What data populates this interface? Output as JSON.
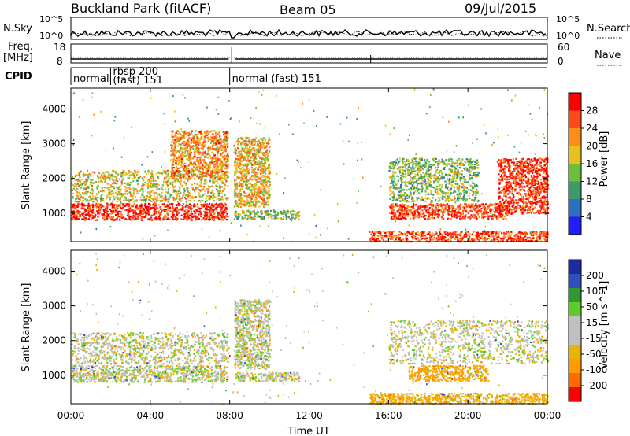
{
  "header": {
    "station": "Buckland Park (fitACF)",
    "beam": "Beam 05",
    "date": "09/Jul/2015"
  },
  "strip": {
    "nsky_label": "N.Sky",
    "nsky_ticks": [
      "10^5",
      "10^0"
    ],
    "nsearch_label": "N.Search",
    "nsearch_ticks": [
      "10^5",
      "10^0"
    ],
    "freq_label_1": "Freq.",
    "freq_label_2": "[MHz]",
    "freq_ticks": [
      "18",
      "8"
    ],
    "nave_label": "Nave",
    "nave_ticks": [
      "60",
      "0"
    ],
    "cpid_label": "CPID",
    "cpid_segments": [
      {
        "label": "normal",
        "start_hr": 0.0,
        "end_hr": 2.0
      },
      {
        "label": "rbsp 200",
        "label2": "(fast) 151",
        "start_hr": 2.0,
        "end_hr": 8.0
      },
      {
        "label": "normal (fast) 151",
        "start_hr": 8.0,
        "end_hr": 24.0
      }
    ]
  },
  "time_axis": {
    "label": "Time UT",
    "ticks": [
      "00:00",
      "04:00",
      "08:00",
      "12:00",
      "16:00",
      "20:00",
      "00:00"
    ],
    "range_hr": [
      0,
      24
    ]
  },
  "power_panel": {
    "ylabel": "Slant Range [km]",
    "yticks": [
      "1000",
      "2000",
      "3000",
      "4000"
    ],
    "colorbar_label": "Power [dB]",
    "colorbar_ticks": [
      "4",
      "8",
      "12",
      "16",
      "20",
      "24",
      "28"
    ]
  },
  "velocity_panel": {
    "ylabel": "Slant Range [km]",
    "yticks": [
      "1000",
      "2000",
      "3000",
      "4000"
    ],
    "colorbar_label": "Velocity [m s^-1]",
    "colorbar_ticks": [
      "-200",
      "-100",
      "-50",
      "-15",
      "15",
      "50",
      "100",
      "200"
    ]
  },
  "chart_data": [
    {
      "type": "heatmap",
      "title": "Power",
      "xlabel": "Time UT",
      "ylabel": "Slant Range [km]",
      "xlim": [
        0,
        24
      ],
      "ylim": [
        180,
        4600
      ],
      "colorbar": {
        "label": "Power [dB]",
        "range": [
          0,
          32
        ],
        "colors": [
          "#1e1eff",
          "#2f6fbf",
          "#3d9a6a",
          "#6cbf3a",
          "#e8c21a",
          "#ff8c1a",
          "#ff4a1a",
          "#ff0000"
        ]
      },
      "regions": [
        {
          "t": [
            0.0,
            7.9
          ],
          "r": [
            820,
            1300
          ],
          "level": 29
        },
        {
          "t": [
            0.0,
            7.9
          ],
          "r": [
            1350,
            2250
          ],
          "level": 18
        },
        {
          "t": [
            5.0,
            7.9
          ],
          "r": [
            2000,
            3400
          ],
          "level": 22
        },
        {
          "t": [
            8.2,
            11.5
          ],
          "r": [
            850,
            1100
          ],
          "level": 14
        },
        {
          "t": [
            8.2,
            10.0
          ],
          "r": [
            1200,
            3200
          ],
          "level": 20
        },
        {
          "t": [
            15.0,
            24.0
          ],
          "r": [
            200,
            500
          ],
          "level": 26
        },
        {
          "t": [
            16.0,
            22.0
          ],
          "r": [
            850,
            1300
          ],
          "level": 27
        },
        {
          "t": [
            16.0,
            20.5
          ],
          "r": [
            1350,
            2600
          ],
          "level": 14
        },
        {
          "t": [
            21.5,
            24.0
          ],
          "r": [
            1000,
            2600
          ],
          "level": 28
        }
      ]
    },
    {
      "type": "heatmap",
      "title": "Velocity",
      "xlabel": "Time UT",
      "ylabel": "Slant Range [km]",
      "xlim": [
        0,
        24
      ],
      "ylim": [
        180,
        4600
      ],
      "colorbar": {
        "label": "Velocity [m s^-1]",
        "range": [
          -200,
          200
        ],
        "colors": [
          "#ff0000",
          "#ff6a00",
          "#ff9c00",
          "#e8b400",
          "#c0c0c0",
          "#c0c0c0",
          "#5ccc2c",
          "#2f9a2f",
          "#2f4fbf",
          "#1e2aa0"
        ]
      },
      "regions": [
        {
          "t": [
            0.0,
            7.9
          ],
          "r": [
            820,
            1300
          ],
          "v": 0
        },
        {
          "t": [
            0.0,
            7.9
          ],
          "r": [
            1350,
            2250
          ],
          "v": 0
        },
        {
          "t": [
            8.2,
            11.5
          ],
          "r": [
            850,
            1100
          ],
          "v": 0
        },
        {
          "t": [
            8.2,
            10.0
          ],
          "r": [
            1200,
            3200
          ],
          "v": 0
        },
        {
          "t": [
            15.0,
            24.0
          ],
          "r": [
            200,
            500
          ],
          "v": -40
        },
        {
          "t": [
            17.0,
            21.0
          ],
          "r": [
            850,
            1300
          ],
          "v": -60
        },
        {
          "t": [
            16.0,
            24.0
          ],
          "r": [
            1350,
            2600
          ],
          "v": 0
        }
      ]
    }
  ]
}
